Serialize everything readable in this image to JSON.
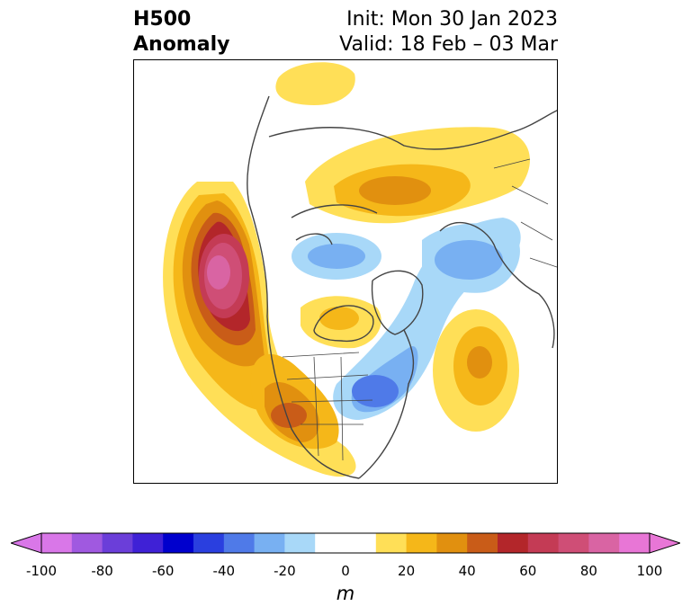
{
  "header": {
    "title_line1": "H500",
    "title_line2": "Anomaly",
    "init": "Init: Mon 30 Jan 2023",
    "valid": "Valid: 18 Feb – 03 Mar"
  },
  "colorbar": {
    "unit": "m",
    "range": [
      -100,
      100
    ],
    "step": 10,
    "ticks": [
      "-100",
      "-80",
      "-60",
      "-40",
      "-20",
      "0",
      "20",
      "40",
      "60",
      "80",
      "100"
    ],
    "colors": [
      "#d977e8",
      "#a059e0",
      "#6b3ed9",
      "#3f21d6",
      "#0000cd",
      "#2a3fdf",
      "#4f7ae8",
      "#78b0f2",
      "#a8d8f8",
      "#ffffff",
      "#ffffff",
      "#ffdf57",
      "#f5b719",
      "#e1900f",
      "#c95c18",
      "#b3262a",
      "#c43b55",
      "#cf4e76",
      "#d964a3",
      "#e876d6"
    ],
    "under_color": "#d977e8",
    "over_color": "#e876d6"
  },
  "map": {
    "projection": "polar stereographic",
    "region": "North America / Arctic",
    "anomaly_features": [
      {
        "name": "Northeast Pacific ridge",
        "sign": "positive",
        "peak_m": 90
      },
      {
        "name": "Western US ridge",
        "sign": "positive",
        "peak_m": 40
      },
      {
        "name": "Siberian ridge",
        "sign": "positive",
        "peak_m": 30
      },
      {
        "name": "North Atlantic ridge",
        "sign": "positive",
        "peak_m": 40
      },
      {
        "name": "Hudson Bay ridge",
        "sign": "positive",
        "peak_m": 20
      },
      {
        "name": "Eastern Canada trough",
        "sign": "negative",
        "peak_m": -40
      },
      {
        "name": "Beaufort trough",
        "sign": "negative",
        "peak_m": -30
      },
      {
        "name": "Northern Europe trough",
        "sign": "negative",
        "peak_m": -30
      }
    ]
  }
}
